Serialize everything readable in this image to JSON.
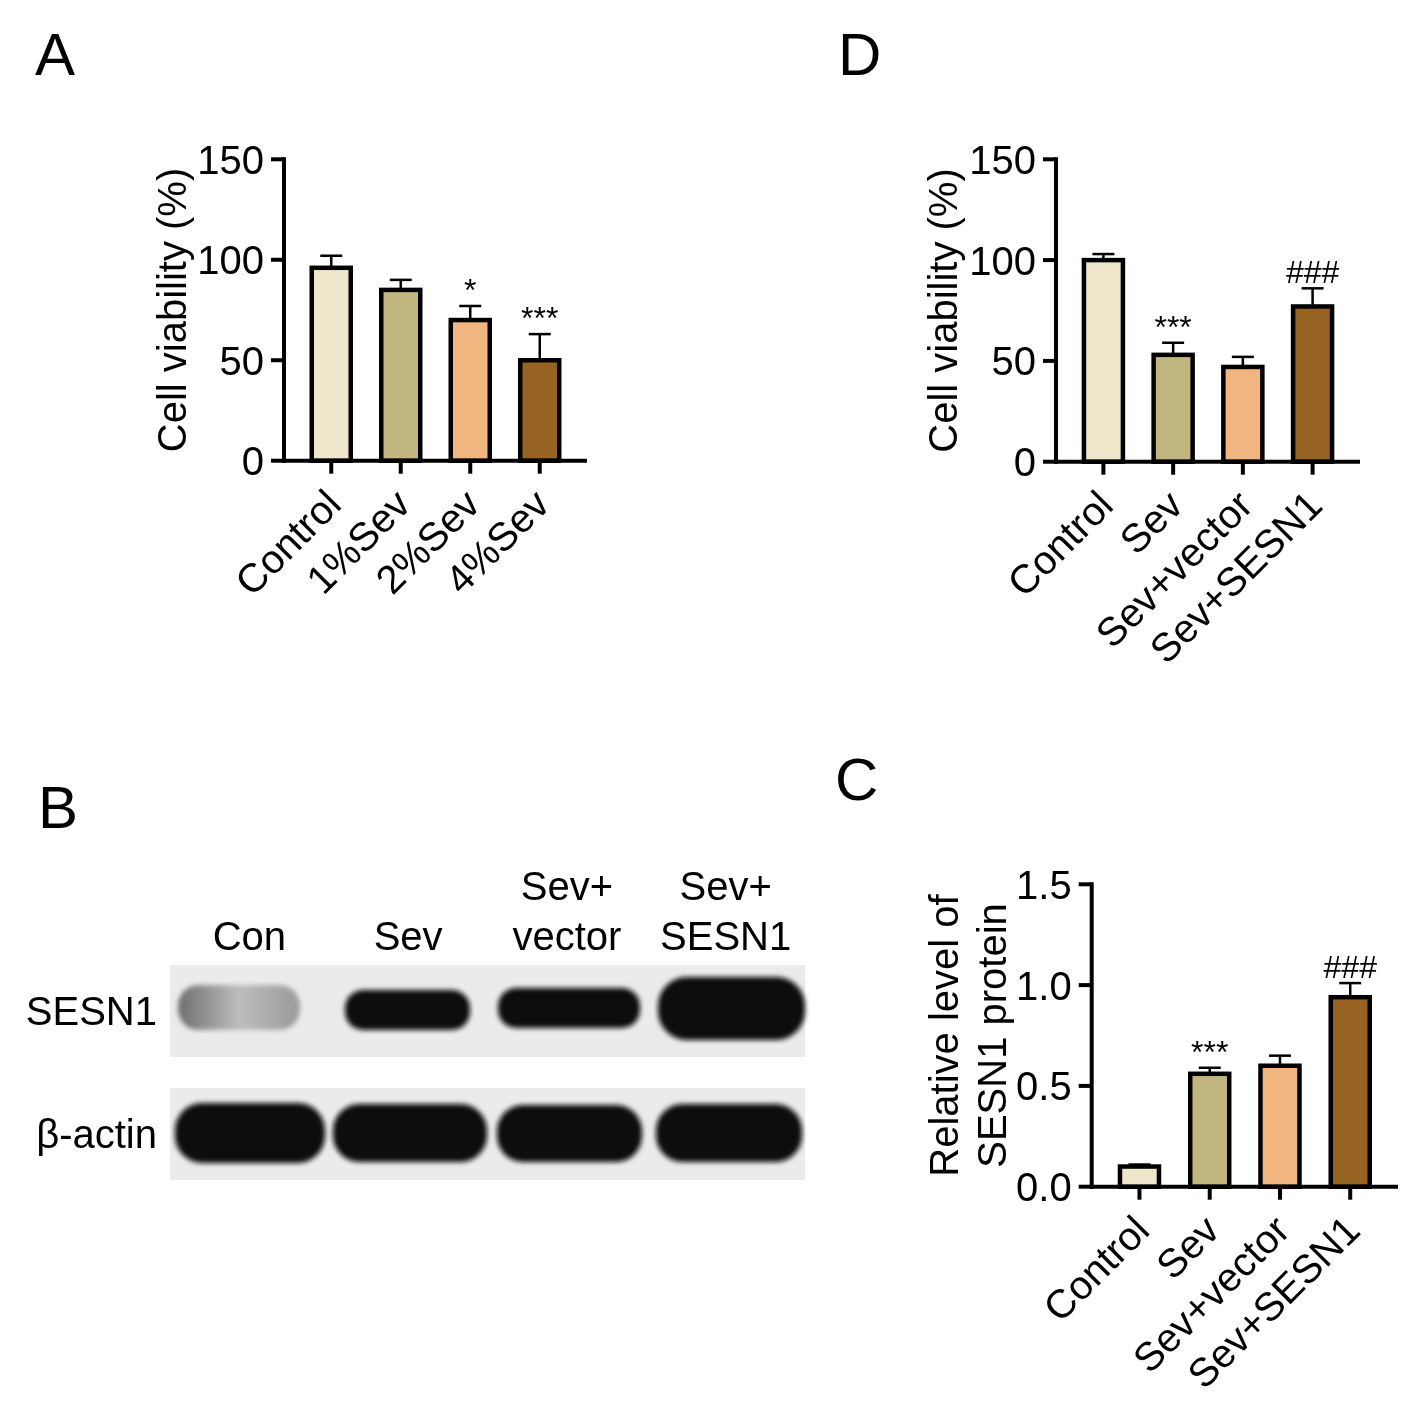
{
  "chart_data": [
    {
      "type": "bar",
      "title": "A",
      "ylabel": "Cell viability (%)",
      "categories": [
        "Control",
        "1%Sev",
        "2%Sev",
        "4%Sev"
      ],
      "values": [
        96,
        85,
        70,
        50
      ],
      "errors": [
        [
          96,
          102
        ],
        [
          85,
          90
        ],
        [
          70,
          77
        ],
        [
          50,
          63
        ]
      ],
      "colors": [
        "#ede6cb",
        "#c1b67f",
        "#f1b680",
        "#966323"
      ],
      "ylim": [
        0,
        150
      ],
      "yticks": [
        0,
        50,
        100,
        150
      ],
      "annotations": [
        {
          "text": "*",
          "x": "2%Sev",
          "y": 77
        },
        {
          "text": "***",
          "x": "4%Sev",
          "y": 63
        }
      ]
    },
    {
      "type": "bar",
      "title": "D",
      "ylabel": "Cell viability (%)",
      "categories": [
        "Control",
        "Sev",
        "Sev+vector",
        "Sev+SESN1"
      ],
      "values": [
        100,
        53,
        47,
        77
      ],
      "errors": [
        [
          100,
          103
        ],
        [
          53,
          59
        ],
        [
          47,
          52
        ],
        [
          77,
          86
        ]
      ],
      "colors": [
        "#ede6cb",
        "#c1b67f",
        "#f1b680",
        "#966323"
      ],
      "ylim": [
        0,
        150
      ],
      "yticks": [
        0,
        50,
        100,
        150
      ],
      "annotations": [
        {
          "text": "***",
          "x": "Sev",
          "y": 59
        },
        {
          "text": "###",
          "x": "Sev+SESN1",
          "y": 86
        }
      ]
    },
    {
      "type": "other",
      "title": "B",
      "categories": [
        "Con",
        "Sev",
        "Sev+\nvector",
        "Sev+\nSESN1"
      ],
      "y_categories": [
        "SESN1",
        "β-actin"
      ]
    },
    {
      "type": "bar",
      "title": "C",
      "ylabel": "Relative level of\nSESN1 protein",
      "categories": [
        "Control",
        "Sev",
        "Sev+vector",
        "Sev+SESN1"
      ],
      "values": [
        0.1,
        0.56,
        0.6,
        0.94
      ],
      "errors": [
        [
          0.1,
          0.11
        ],
        [
          0.56,
          0.59
        ],
        [
          0.6,
          0.65
        ],
        [
          0.94,
          1.01
        ]
      ],
      "colors": [
        "#ede6cb",
        "#c1b67f",
        "#f1b680",
        "#966323"
      ],
      "ylim": [
        0,
        1.5
      ],
      "yticks": [
        {
          "value": 0,
          "label": "0.0"
        },
        0.5,
        {
          "value": 1,
          "label": "1.0"
        },
        1.5
      ],
      "annotations": [
        {
          "text": "***",
          "x": "Sev",
          "y": 0.59
        },
        {
          "text": "###",
          "x": "Sev+SESN1",
          "y": 1.01
        }
      ]
    }
  ]
}
